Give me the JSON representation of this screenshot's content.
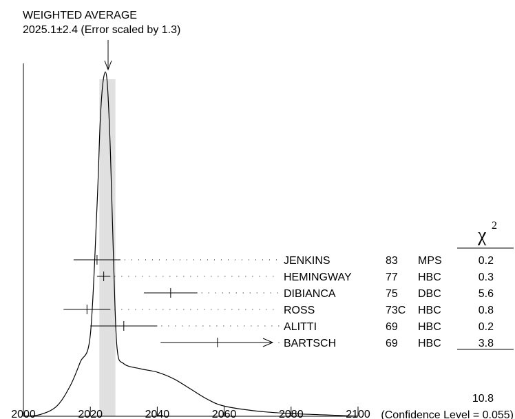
{
  "chart_data": {
    "type": "ideogram",
    "title_line1": "WEIGHTED AVERAGE",
    "title_line2": "2025.1±2.4 (Error scaled by 1.3)",
    "weighted_average": 2025.1,
    "average_error": 2.4,
    "error_scale_factor": 1.3,
    "xlim": [
      2000,
      2100
    ],
    "x_ticks": [
      2000,
      2020,
      2040,
      2060,
      2080,
      2100
    ],
    "x_tick_labels": [
      "2000",
      "2020",
      "2040",
      "2060",
      "2080",
      "2100"
    ],
    "chi_header": "χ",
    "chi_header_sup": "2",
    "measurements": [
      {
        "name": "JENKINS",
        "year": "83",
        "tech": "MPS",
        "value": 2022,
        "error": 7,
        "chi2": "0.2"
      },
      {
        "name": "HEMINGWAY",
        "year": "77",
        "tech": "HBC",
        "value": 2024,
        "error": 2,
        "chi2": "0.3"
      },
      {
        "name": "DIBIANCA",
        "year": "75",
        "tech": "DBC",
        "value": 2044,
        "error": 8,
        "chi2": "5.6"
      },
      {
        "name": "ROSS",
        "year": "73C",
        "tech": "HBC",
        "value": 2019,
        "error": 7,
        "chi2": "0.8"
      },
      {
        "name": "ALITTI",
        "year": "69",
        "tech": "HBC",
        "value": 2030,
        "error": 10,
        "chi2": "0.2"
      },
      {
        "name": "BARTSCH",
        "year": "69",
        "tech": "HBC",
        "value": 2058,
        "error": 17,
        "chi2": "3.8",
        "arrow_right": true
      }
    ],
    "chi2_total": "10.8",
    "confidence_level_text": "(Confidence Level = 0.055)",
    "ideogram_curve": [
      [
        2000,
        0.0
      ],
      [
        2005,
        0.005
      ],
      [
        2010,
        0.03
      ],
      [
        2014,
        0.09
      ],
      [
        2017,
        0.16
      ],
      [
        2020,
        0.24
      ],
      [
        2022,
        0.62
      ],
      [
        2023,
        0.88
      ],
      [
        2024,
        1.0
      ],
      [
        2025,
        0.99
      ],
      [
        2026,
        0.78
      ],
      [
        2027,
        0.44
      ],
      [
        2028,
        0.2
      ],
      [
        2030,
        0.155
      ],
      [
        2035,
        0.14
      ],
      [
        2040,
        0.13
      ],
      [
        2045,
        0.11
      ],
      [
        2050,
        0.08
      ],
      [
        2055,
        0.05
      ],
      [
        2060,
        0.03
      ],
      [
        2070,
        0.015
      ],
      [
        2080,
        0.008
      ],
      [
        2090,
        0.004
      ],
      [
        2100,
        0.0
      ]
    ]
  }
}
